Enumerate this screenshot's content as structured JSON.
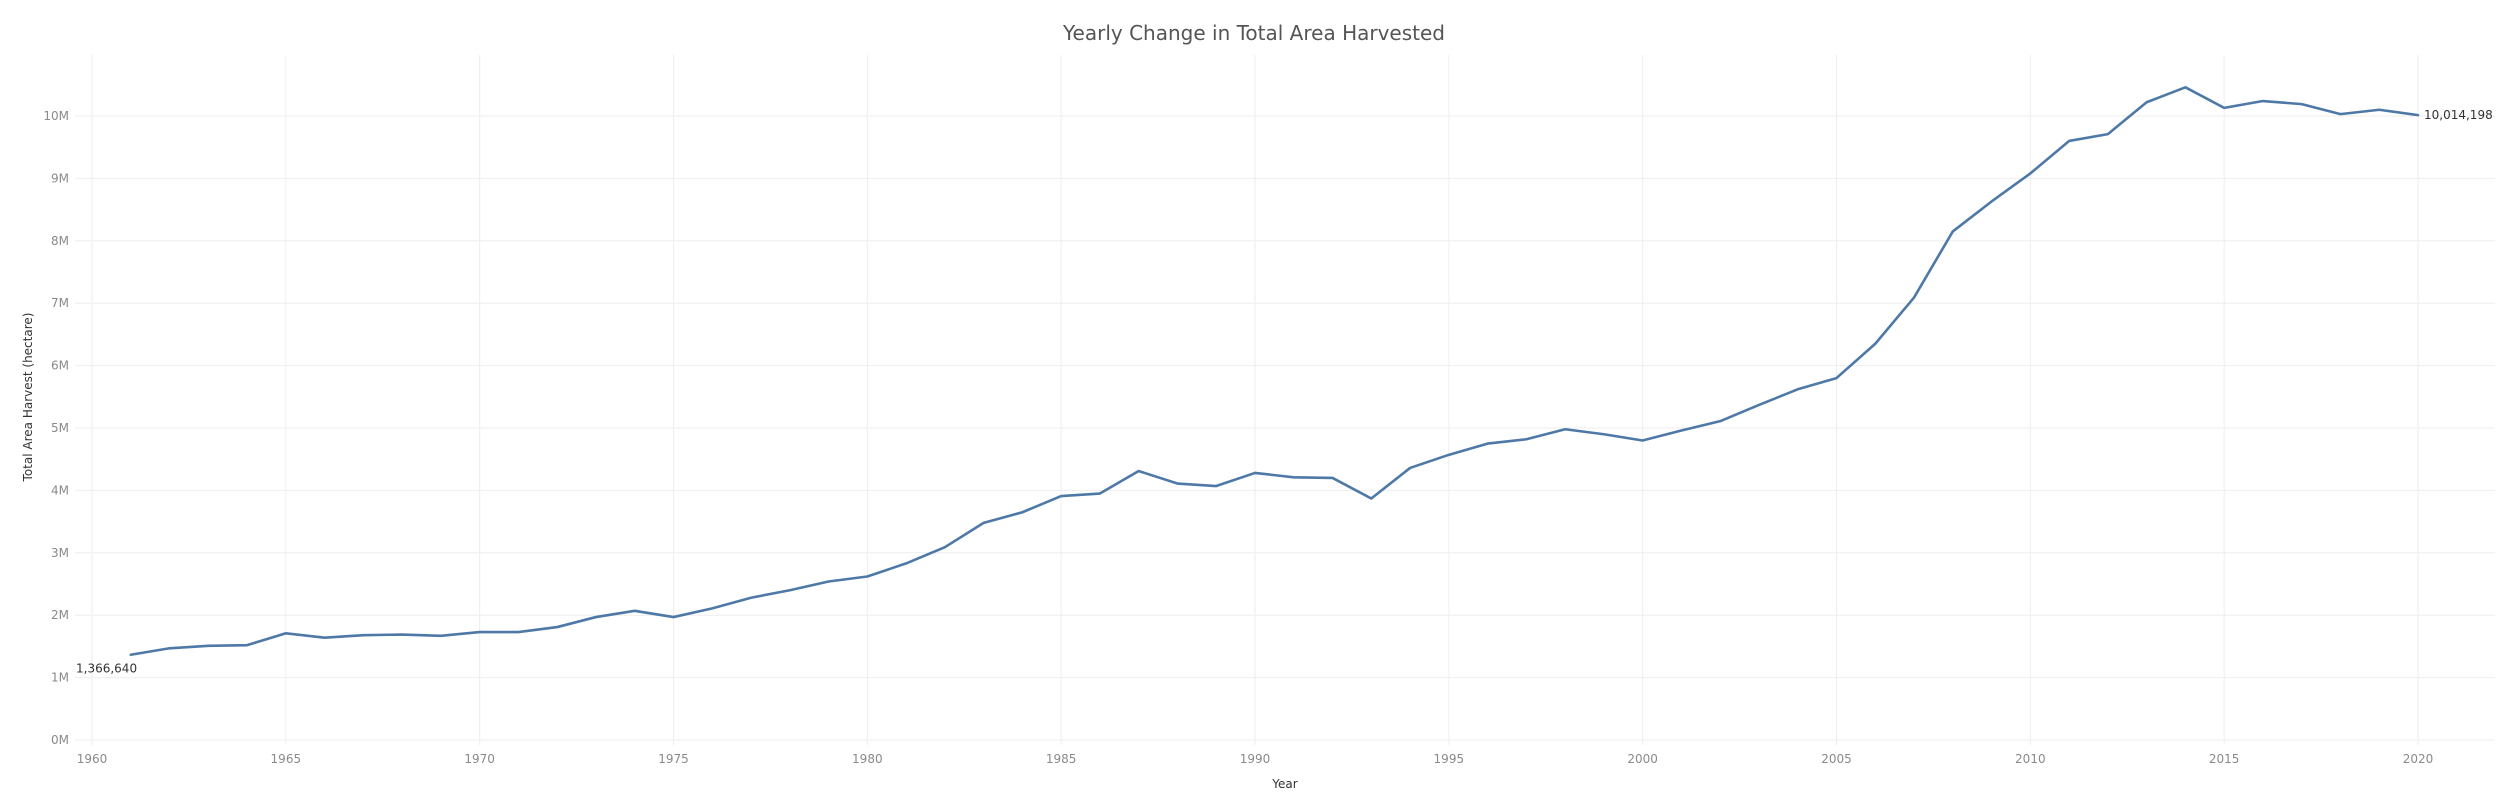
{
  "chart_data": {
    "type": "line",
    "title": "Yearly Change in Total Area Harvested",
    "xlabel": "Year",
    "ylabel": "Total Area Harvest (hectare)",
    "xlim": [
      1960,
      2020
    ],
    "ylim": [
      0,
      10500000
    ],
    "grid": true,
    "x_ticks": [
      1960,
      1965,
      1970,
      1975,
      1980,
      1985,
      1990,
      1995,
      2000,
      2005,
      2010,
      2015,
      2020
    ],
    "x_tick_labels": [
      "1960",
      "1965",
      "1970",
      "1975",
      "1980",
      "1985",
      "1990",
      "1995",
      "2000",
      "2005",
      "2010",
      "2015",
      "2020"
    ],
    "y_ticks": [
      0,
      1000000,
      2000000,
      3000000,
      4000000,
      5000000,
      6000000,
      7000000,
      8000000,
      9000000,
      10000000
    ],
    "y_tick_labels": [
      "0M",
      "1M",
      "2M",
      "3M",
      "4M",
      "5M",
      "6M",
      "7M",
      "8M",
      "9M",
      "10M"
    ],
    "series": [
      {
        "color": "#4e79a7",
        "x": [
          1961,
          1962,
          1963,
          1964,
          1965,
          1966,
          1967,
          1968,
          1969,
          1970,
          1971,
          1972,
          1973,
          1974,
          1975,
          1976,
          1977,
          1978,
          1979,
          1980,
          1981,
          1982,
          1983,
          1984,
          1985,
          1986,
          1987,
          1988,
          1989,
          1990,
          1991,
          1992,
          1993,
          1994,
          1995,
          1996,
          1997,
          1998,
          1999,
          2000,
          2001,
          2002,
          2003,
          2004,
          2005,
          2006,
          2007,
          2008,
          2009,
          2010,
          2011,
          2012,
          2013,
          2014,
          2015,
          2016,
          2017,
          2018,
          2019,
          2020
        ],
        "values": [
          1366640,
          1470000,
          1510000,
          1520000,
          1710000,
          1640000,
          1680000,
          1690000,
          1670000,
          1730000,
          1730000,
          1810000,
          1970000,
          2070000,
          1970000,
          2110000,
          2280000,
          2400000,
          2540000,
          2620000,
          2830000,
          3090000,
          3480000,
          3650000,
          3910000,
          3950000,
          4310000,
          4110000,
          4070000,
          4280000,
          4210000,
          4200000,
          3870000,
          4360000,
          4570000,
          4750000,
          4820000,
          4980000,
          4900000,
          4800000,
          4960000,
          5110000,
          5370000,
          5620000,
          5800000,
          6350000,
          7090000,
          8150000,
          8630000,
          9080000,
          9600000,
          9710000,
          10220000,
          10460000,
          10130000,
          10240000,
          10190000,
          10030000,
          10100000,
          10014198
        ]
      }
    ],
    "annotations": [
      {
        "text": "1,366,640",
        "x": 1961,
        "y": 1366640,
        "position": "below-left"
      },
      {
        "text": "10,014,198",
        "x": 2020,
        "y": 10014198,
        "position": "right"
      }
    ]
  }
}
